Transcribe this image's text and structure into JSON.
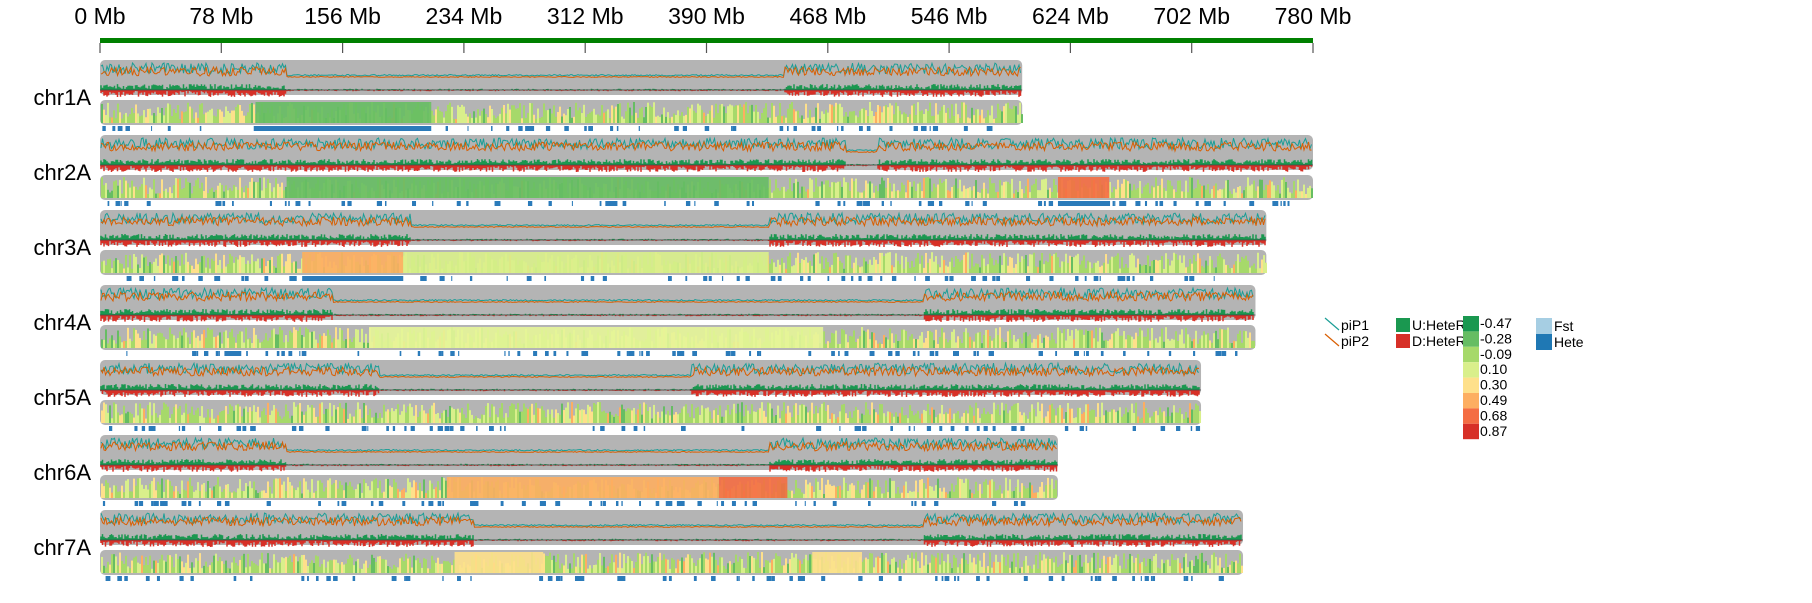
{
  "chart_data": {
    "type": "genome-track",
    "axis": {
      "unit": "Mb",
      "min": 0,
      "max": 780,
      "ticks": [
        0,
        78,
        156,
        234,
        312,
        390,
        468,
        546,
        624,
        702,
        780
      ],
      "tick_labels": [
        "0 Mb",
        "78 Mb",
        "156 Mb",
        "234 Mb",
        "312 Mb",
        "390 Mb",
        "468 Mb",
        "546 Mb",
        "624 Mb",
        "702 Mb",
        "780 Mb"
      ]
    },
    "chromosomes": [
      {
        "name": "chr1A",
        "length_mb": 593,
        "low_diversity_mb": [
          [
            120,
            440
          ]
        ],
        "fst_blocks": [
          {
            "start": 100,
            "end": 213,
            "color": "#66bd63"
          }
        ],
        "hete_blocks": [
          {
            "start": 100,
            "end": 213
          }
        ]
      },
      {
        "name": "chr2A",
        "length_mb": 780,
        "low_diversity_mb": [
          [
            480,
            500
          ]
        ],
        "fst_blocks": [
          {
            "start": 120,
            "end": 430,
            "color": "#66bd63"
          },
          {
            "start": 616,
            "end": 649,
            "color": "#f46d43"
          }
        ],
        "hete_blocks": [
          {
            "start": 616,
            "end": 649
          }
        ]
      },
      {
        "name": "chr3A",
        "length_mb": 750,
        "low_diversity_mb": [
          [
            200,
            430
          ]
        ],
        "fst_blocks": [
          {
            "start": 130,
            "end": 195,
            "color": "#fdae61"
          },
          {
            "start": 195,
            "end": 430,
            "color": "#d9ef8b"
          }
        ],
        "hete_blocks": [
          {
            "start": 130,
            "end": 195
          }
        ]
      },
      {
        "name": "chr4A",
        "length_mb": 743,
        "low_diversity_mb": [
          [
            150,
            530
          ]
        ],
        "fst_blocks": [
          {
            "start": 173,
            "end": 465,
            "color": "#e6f598"
          }
        ],
        "hete_blocks": [
          {
            "start": 80,
            "end": 90
          }
        ]
      },
      {
        "name": "chr5A",
        "length_mb": 708,
        "low_diversity_mb": [
          [
            180,
            380
          ]
        ],
        "fst_blocks": [],
        "hete_blocks": []
      },
      {
        "name": "chr6A",
        "length_mb": 616,
        "low_diversity_mb": [
          [
            120,
            430
          ]
        ],
        "fst_blocks": [
          {
            "start": 223,
            "end": 398,
            "color": "#fdae61"
          },
          {
            "start": 398,
            "end": 442,
            "color": "#f46d43"
          }
        ],
        "hete_blocks": []
      },
      {
        "name": "chr7A",
        "length_mb": 735,
        "low_diversity_mb": [
          [
            240,
            530
          ]
        ],
        "fst_blocks": [
          {
            "start": 228,
            "end": 285,
            "color": "#fee08b"
          },
          {
            "start": 458,
            "end": 490,
            "color": "#fee08b"
          }
        ],
        "hete_blocks": []
      }
    ],
    "legend": {
      "pi": [
        {
          "label": "piP1",
          "color": "#1b9e96"
        },
        {
          "label": "piP2",
          "color": "#d95f02"
        }
      ],
      "hetero": [
        {
          "label": "U:HeteR",
          "color": "#1a9850"
        },
        {
          "label": "D:HeteR",
          "color": "#d73027"
        }
      ],
      "fst_scale": [
        {
          "label": "-0.47",
          "color": "#1a9850"
        },
        {
          "label": "-0.28",
          "color": "#66bd63"
        },
        {
          "label": "-0.09",
          "color": "#a6d96a"
        },
        {
          "label": "0.10",
          "color": "#d9ef8b"
        },
        {
          "label": "0.30",
          "color": "#fee08b"
        },
        {
          "label": "0.49",
          "color": "#fdae61"
        },
        {
          "label": "0.68",
          "color": "#f46d43"
        },
        {
          "label": "0.87",
          "color": "#d73027"
        }
      ],
      "tracks": [
        {
          "label": "Fst",
          "color": "#a6cee3"
        },
        {
          "label": "Hete",
          "color": "#1f78b4"
        }
      ]
    },
    "colors": {
      "axis": "#008000",
      "chrom_bg": "#b4b4b4",
      "hete_track": "#2b7bba"
    },
    "grid": false,
    "legend_placement": "right"
  }
}
